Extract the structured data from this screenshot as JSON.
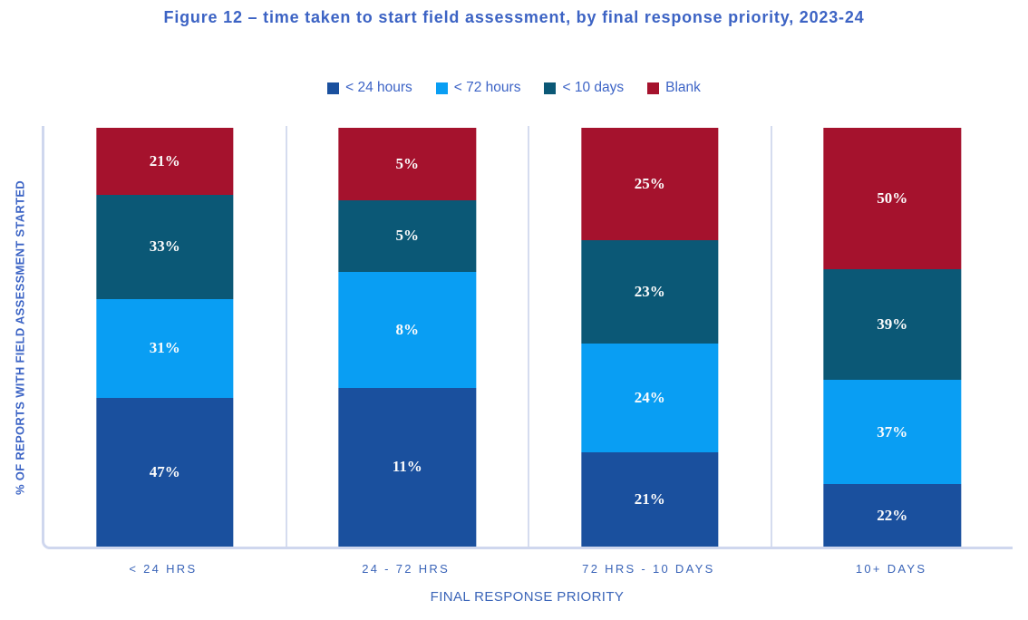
{
  "figure": {
    "title": "Figure 12 – time taken to start field assessment, by final response priority, 2023-24"
  },
  "chart_data": {
    "type": "bar",
    "subtype": "100-percent-stacked-column",
    "title": "Figure 12 – time taken to start field assessment, by final response priority, 2023-24",
    "categories": [
      "< 24 HRS",
      "24 - 72 HRS",
      "72 HRS - 10 DAYS",
      "10+ DAYS"
    ],
    "series": [
      {
        "name": "< 24 hours",
        "color": "#1a509e",
        "values": [
          47,
          11,
          21,
          22
        ]
      },
      {
        "name": "< 72 hours",
        "color": "#099ef3",
        "values": [
          31,
          8,
          24,
          37
        ]
      },
      {
        "name": "< 10 days",
        "color": "#0b5876",
        "values": [
          33,
          5,
          23,
          39
        ]
      },
      {
        "name": "Blank",
        "color": "#a5122d",
        "values": [
          21,
          5,
          25,
          50
        ]
      }
    ],
    "value_suffix": "%",
    "stack_order_bottom_to_top": [
      "< 24 hours",
      "< 72 hours",
      "< 10 days",
      "Blank"
    ],
    "segment_height_rule": "each segment height = value / column total (labels show raw %)",
    "xlabel": "FINAL RESPONSE PRIORITY",
    "ylabel": "% OF REPORTS WITH FIELD ASSESSMENT STARTED",
    "legend_position": "top",
    "grid": "vertical category separators only",
    "colors": {
      "title_text": "#3c63c4",
      "legend_text": "#3d64c6",
      "axis_text": "#3a64b8",
      "axis_line": "#cfd7ee",
      "separator_line": "#d5dcef",
      "data_label_text": "#fbfbfb"
    }
  }
}
